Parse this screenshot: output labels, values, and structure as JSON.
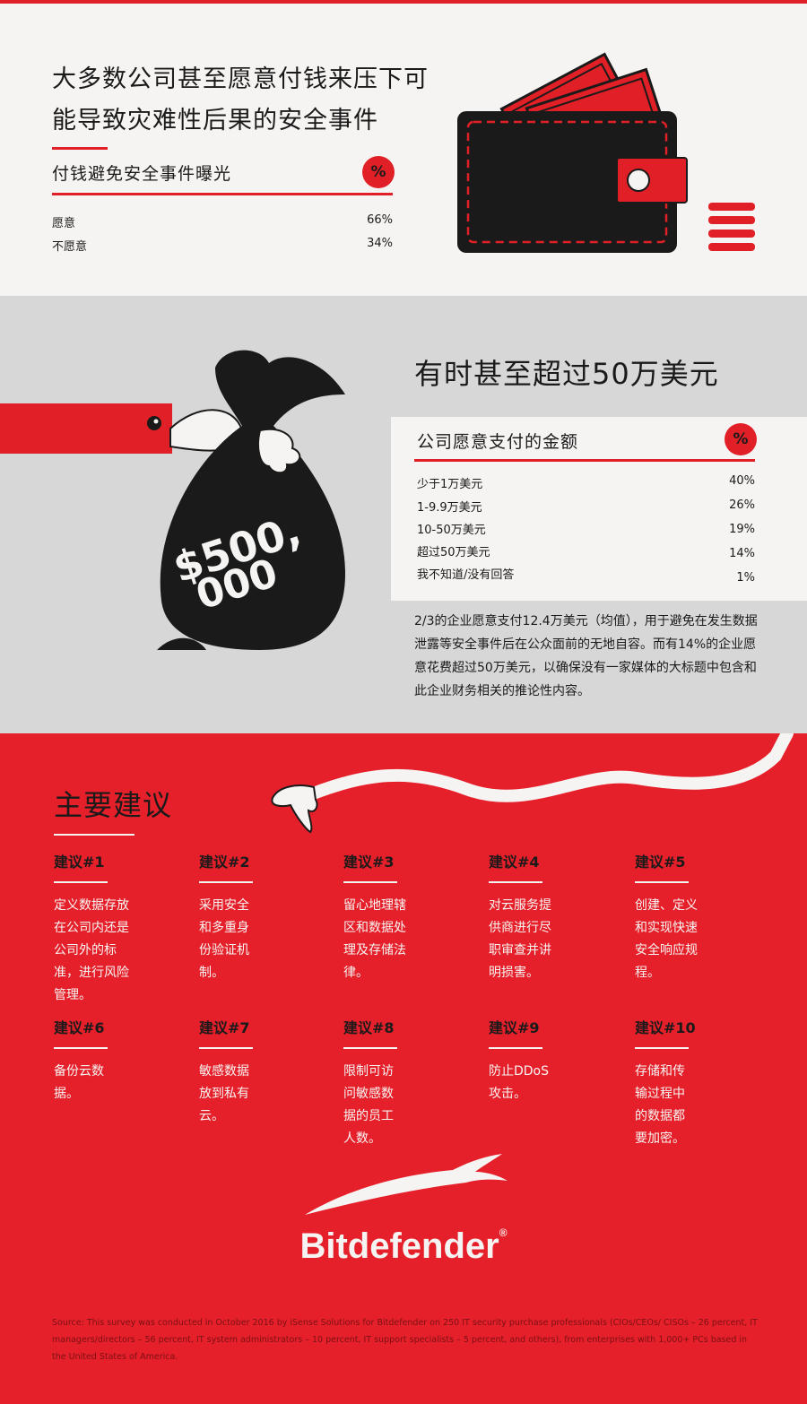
{
  "section1": {
    "title": "大多数公司甚至愿意付钱来压下可能导致灾难性后果的安全事件",
    "subheading": "付钱避免安全事件曝光",
    "percent_symbol": "%",
    "rows": [
      {
        "label": "愿意",
        "value": "66%"
      },
      {
        "label": "不愿意",
        "value": "34%"
      }
    ]
  },
  "section2": {
    "title": "有时甚至超过50万美元",
    "subheading": "公司愿意支付的金额",
    "percent_symbol": "%",
    "rows": [
      {
        "label": "少于1万美元",
        "value": "40%"
      },
      {
        "label": "1-9.9万美元",
        "value": "26%"
      },
      {
        "label": "10-50万美元",
        "value": "19%"
      },
      {
        "label": "超过50万美元",
        "value": "14%"
      },
      {
        "label": "我不知道/没有回答",
        "value": "1%"
      }
    ],
    "paragraph": "2/3的企业愿意支付12.4万美元（均值），用于避免在发生数据泄露等安全事件后在公众面前的无地自容。而有14%的企业愿意花费超过50万美元，以确保没有一家媒体的大标题中包含和此企业财务相关的推论性内容。",
    "bag_text_1": "$500,",
    "bag_text_2": "000"
  },
  "section3": {
    "title": "主要建议",
    "recommendations": [
      {
        "title": "建议#1",
        "text": "定义数据存放在公司内还是公司外的标准，进行风险管理。"
      },
      {
        "title": "建议#2",
        "text": "采用安全和多重身份验证机制。"
      },
      {
        "title": "建议#3",
        "text": "留心地理辖区和数据处理及存储法律。"
      },
      {
        "title": "建议#4",
        "text": "对云服务提供商进行尽职审查并讲明损害。"
      },
      {
        "title": "建议#5",
        "text": "创建、定义和实现快速安全响应规程。"
      },
      {
        "title": "建议#6",
        "text": "备份云数据。"
      },
      {
        "title": "建议#7",
        "text": "敏感数据放到私有云。"
      },
      {
        "title": "建议#8",
        "text": "限制可访问敏感数据的员工人数。"
      },
      {
        "title": "建议#9",
        "text": "防止DDoS攻击。"
      },
      {
        "title": "建议#10",
        "text": "存储和传输过程中的数据都要加密。"
      }
    ],
    "brand": "Bitdefender",
    "brand_mark": "®",
    "source": "Source: This survey was conducted in October 2016 by iSense Solutions for Bitdefender on 250 IT security purchase professionals (CIOs/CEOs/ CISOs – 26 percent, IT managers/directors – 56 percent, IT system administrators – 10 percent, IT support specialists – 5 percent, and others), from enterprises with 1,000+ PCs based in the United States of America."
  },
  "colors": {
    "accent_red": "#e02026",
    "background_light": "#f6f4f2",
    "background_gray": "#d8d7d7",
    "ink": "#1a1a1a"
  }
}
